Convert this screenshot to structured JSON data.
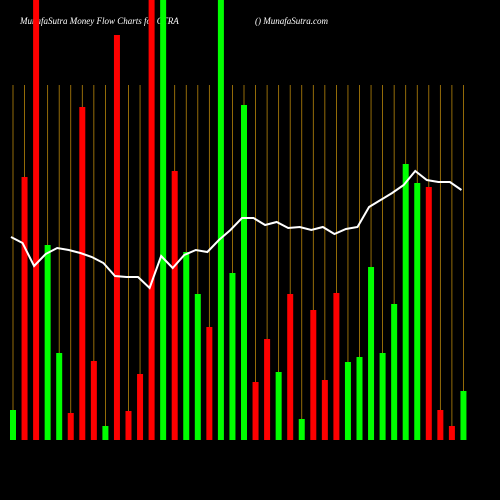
{
  "chart_data": {
    "type": "bar",
    "title": "MunafaSutra  Money Flow  Charts for CTRA",
    "subtitle": "() MunafaSutra.com",
    "values": [
      30,
      263,
      440,
      195,
      87,
      27,
      333,
      79,
      14,
      405,
      29,
      66,
      440,
      440,
      269,
      188,
      146,
      113,
      440,
      167,
      335,
      58,
      101,
      68,
      146,
      21,
      130,
      60,
      147,
      78,
      83,
      173,
      87,
      136,
      276,
      257,
      253,
      30,
      14,
      49
    ],
    "bar_colors": [
      "#00ff00",
      "#ff0000",
      "#ff0000",
      "#00ff00",
      "#00ff00",
      "#ff0000",
      "#ff0000",
      "#ff0000",
      "#00ff00",
      "#ff0000",
      "#ff0000",
      "#ff0000",
      "#ff0000",
      "#00ff00",
      "#ff0000",
      "#00ff00",
      "#00ff00",
      "#ff0000",
      "#00ff00",
      "#00ff00",
      "#00ff00",
      "#ff0000",
      "#ff0000",
      "#00ff00",
      "#ff0000",
      "#00ff00",
      "#ff0000",
      "#ff0000",
      "#ff0000",
      "#00ff00",
      "#00ff00",
      "#00ff00",
      "#00ff00",
      "#00ff00",
      "#00ff00",
      "#00ff00",
      "#ff0000",
      "#ff0000",
      "#ff0000",
      "#00ff00"
    ],
    "line": {
      "color": "#ffffff",
      "values": [
        203,
        197,
        174,
        186,
        192,
        190,
        187,
        183,
        177,
        164,
        163,
        163,
        152,
        184,
        172,
        185,
        190,
        188,
        200,
        210,
        222,
        222,
        215,
        218,
        212,
        213,
        210,
        213,
        206,
        211,
        213,
        233,
        240,
        247,
        255,
        269,
        260,
        258,
        258,
        250
      ]
    },
    "ylim": [
      0,
      440
    ],
    "grid": true,
    "grid_color": "#b8860b"
  }
}
